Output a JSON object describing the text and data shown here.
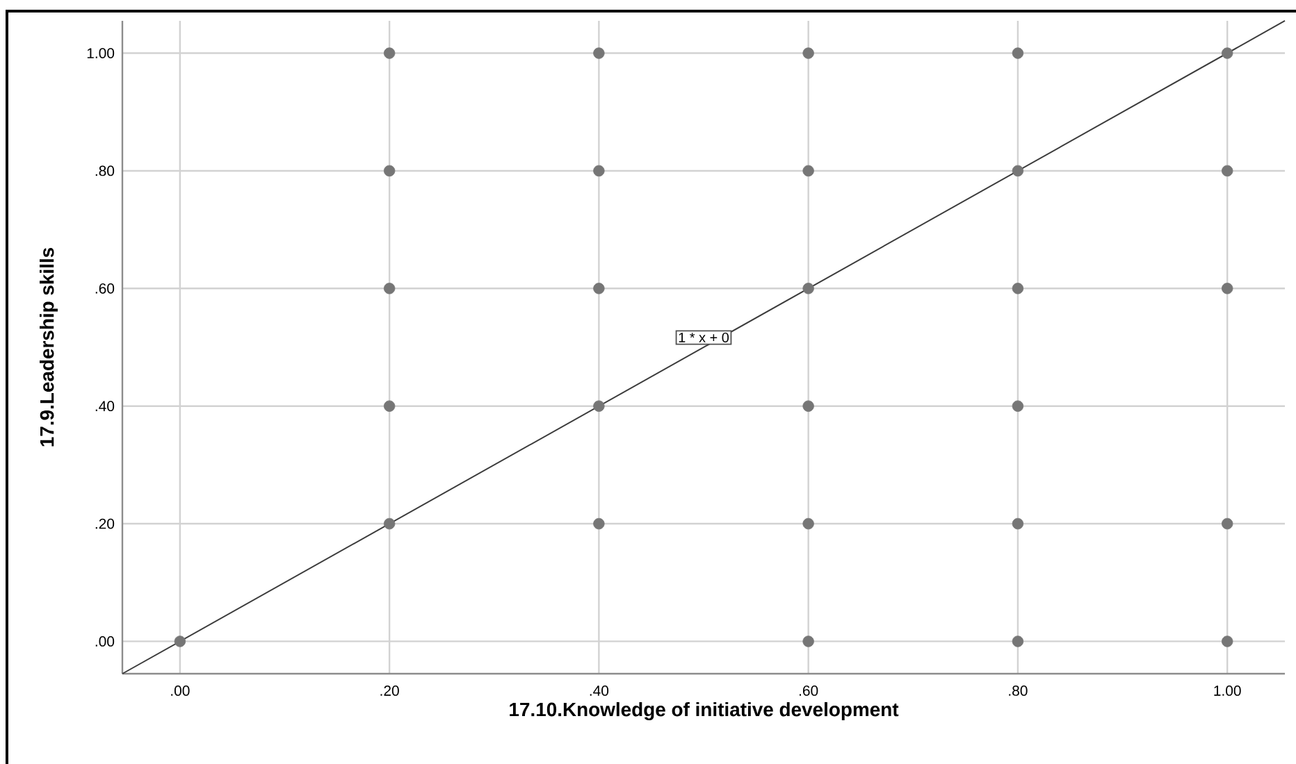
{
  "chart_data": {
    "type": "scatter",
    "xlabel": "17.10.Knowledge of initiative development",
    "ylabel": "17.9.Leadership skills",
    "series": [
      {
        "color": "#767676",
        "x": [
          0,
          0.2,
          0.2,
          0.2,
          0.2,
          0.2,
          0.4,
          0.4,
          0.4,
          0.4,
          0.4,
          0.6,
          0.6,
          0.6,
          0.6,
          0.6,
          0.6,
          0.8,
          0.8,
          0.8,
          0.8,
          0.8,
          0.8,
          1,
          1,
          1,
          1,
          1
        ],
        "values": [
          0,
          1,
          0.8,
          0.6,
          0.4,
          0.2,
          1,
          0.8,
          0.6,
          0.4,
          0.2,
          1,
          0.8,
          0.6,
          0.4,
          0.2,
          0,
          1,
          0.8,
          0.6,
          0.4,
          0.2,
          0,
          1,
          0.8,
          0.6,
          0.2,
          0
        ]
      },
      {
        "type": "line",
        "color": "#3c3c3c",
        "marker": "none",
        "x": [
          -0.055,
          1.055
        ],
        "values": [
          -0.055,
          1.055
        ]
      }
    ],
    "annotations": [
      {
        "text": "1 * x + 0",
        "x": 0.5,
        "y": 0.5
      }
    ],
    "xlim": [
      -0.055,
      1.055
    ],
    "ylim": [
      -0.055,
      1.055
    ],
    "xticks": [
      {
        "value": 0,
        "label": ".00"
      },
      {
        "value": 0.2,
        "label": ".20"
      },
      {
        "value": 0.4,
        "label": ".40"
      },
      {
        "value": 0.6,
        "label": ".60"
      },
      {
        "value": 0.8,
        "label": ".80"
      },
      {
        "value": 1,
        "label": "1.00"
      }
    ],
    "yticks": [
      {
        "value": 0,
        "label": ".00"
      },
      {
        "value": 0.2,
        "label": ".20"
      },
      {
        "value": 0.4,
        "label": ".40"
      },
      {
        "value": 0.6,
        "label": ".60"
      },
      {
        "value": 0.8,
        "label": ".80"
      },
      {
        "value": 1,
        "label": "1.00"
      }
    ],
    "grid": true,
    "marker": "circle"
  }
}
